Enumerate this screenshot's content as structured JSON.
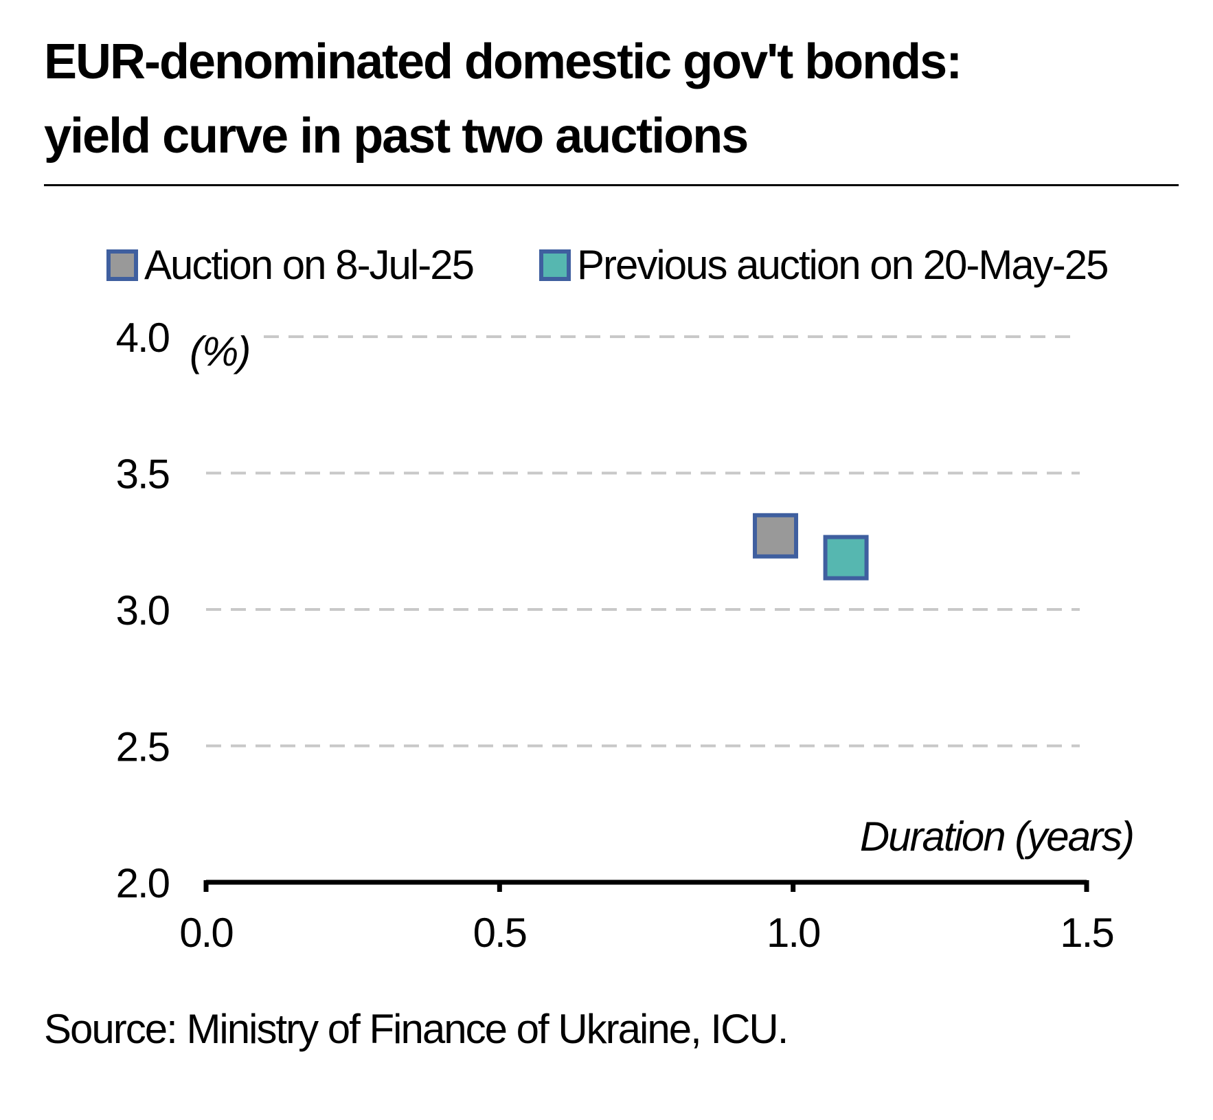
{
  "title_line1": "EUR-denominated domestic gov't bonds:",
  "title_line2": "yield curve in past two auctions",
  "source": "Source: Ministry of Finance of Ukraine, ICU.",
  "chart_data": {
    "type": "scatter",
    "title": "EUR-denominated domestic gov't bonds: yield curve in past two auctions",
    "xlabel": "Duration (years)",
    "ylabel": "(%)",
    "xlim": [
      0,
      1.5
    ],
    "ylim": [
      2.0,
      4.0
    ],
    "x_ticks": [
      "0.0",
      "0.5",
      "1.0",
      "1.5"
    ],
    "y_ticks": [
      "2.0",
      "2.5",
      "3.0",
      "3.5",
      "4.0"
    ],
    "grid": "horizontal dashed",
    "legend_position": "top",
    "series": [
      {
        "name": "Auction on 8-Jul-25",
        "color": "#999999",
        "border_color": "#3f5f9f",
        "marker": "square",
        "points": [
          {
            "x": 0.97,
            "y": 3.27
          }
        ]
      },
      {
        "name": "Previous auction on 20-May-25",
        "color": "#56b7b0",
        "border_color": "#3f5f9f",
        "marker": "square",
        "points": [
          {
            "x": 1.09,
            "y": 3.19
          }
        ]
      }
    ]
  }
}
